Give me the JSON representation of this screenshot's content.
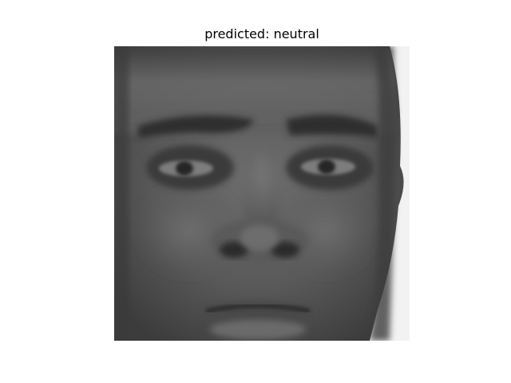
{
  "figure": {
    "title": "predicted: neutral",
    "image": {
      "subject": "grayscale-face-photo",
      "colors": {
        "background": "#ffffff",
        "skin_dark": "#3a3a3a",
        "skin_mid": "#585858",
        "skin_light": "#7a7a7a",
        "highlight": "#9a9a9a"
      }
    }
  }
}
